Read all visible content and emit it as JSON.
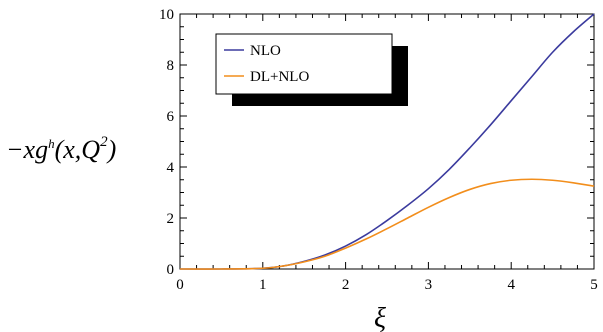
{
  "chart_data": {
    "type": "line",
    "xlabel": "ξ",
    "ylabel": "−xg^h(x,Q^2)",
    "ylabel_parts": {
      "prefix": "−xg",
      "sup1": "h",
      "mid": "(x,Q",
      "sup2": "2",
      "suffix": ")"
    },
    "xlim": [
      0,
      5
    ],
    "ylim": [
      0,
      10
    ],
    "xticks": [
      0,
      1,
      2,
      3,
      4,
      5
    ],
    "yticks": [
      0,
      2,
      4,
      6,
      8,
      10
    ],
    "grid": false,
    "legend_position": "top-left",
    "x": [
      0,
      0.5,
      1,
      1.25,
      1.5,
      1.75,
      2,
      2.25,
      2.5,
      2.75,
      3,
      3.25,
      3.5,
      3.75,
      4,
      4.25,
      4.5,
      4.75,
      5
    ],
    "series": [
      {
        "name": "NLO",
        "color": "#3b3b9e",
        "values": [
          0,
          0,
          0.03,
          0.12,
          0.3,
          0.55,
          0.9,
          1.35,
          1.9,
          2.5,
          3.15,
          3.9,
          4.75,
          5.65,
          6.6,
          7.55,
          8.5,
          9.3,
          10.0
        ]
      },
      {
        "name": "DL+NLO",
        "color": "#f28e1c",
        "values": [
          0,
          0,
          0.03,
          0.12,
          0.28,
          0.5,
          0.82,
          1.18,
          1.58,
          2.0,
          2.42,
          2.8,
          3.12,
          3.35,
          3.48,
          3.52,
          3.48,
          3.38,
          3.25
        ]
      }
    ]
  }
}
